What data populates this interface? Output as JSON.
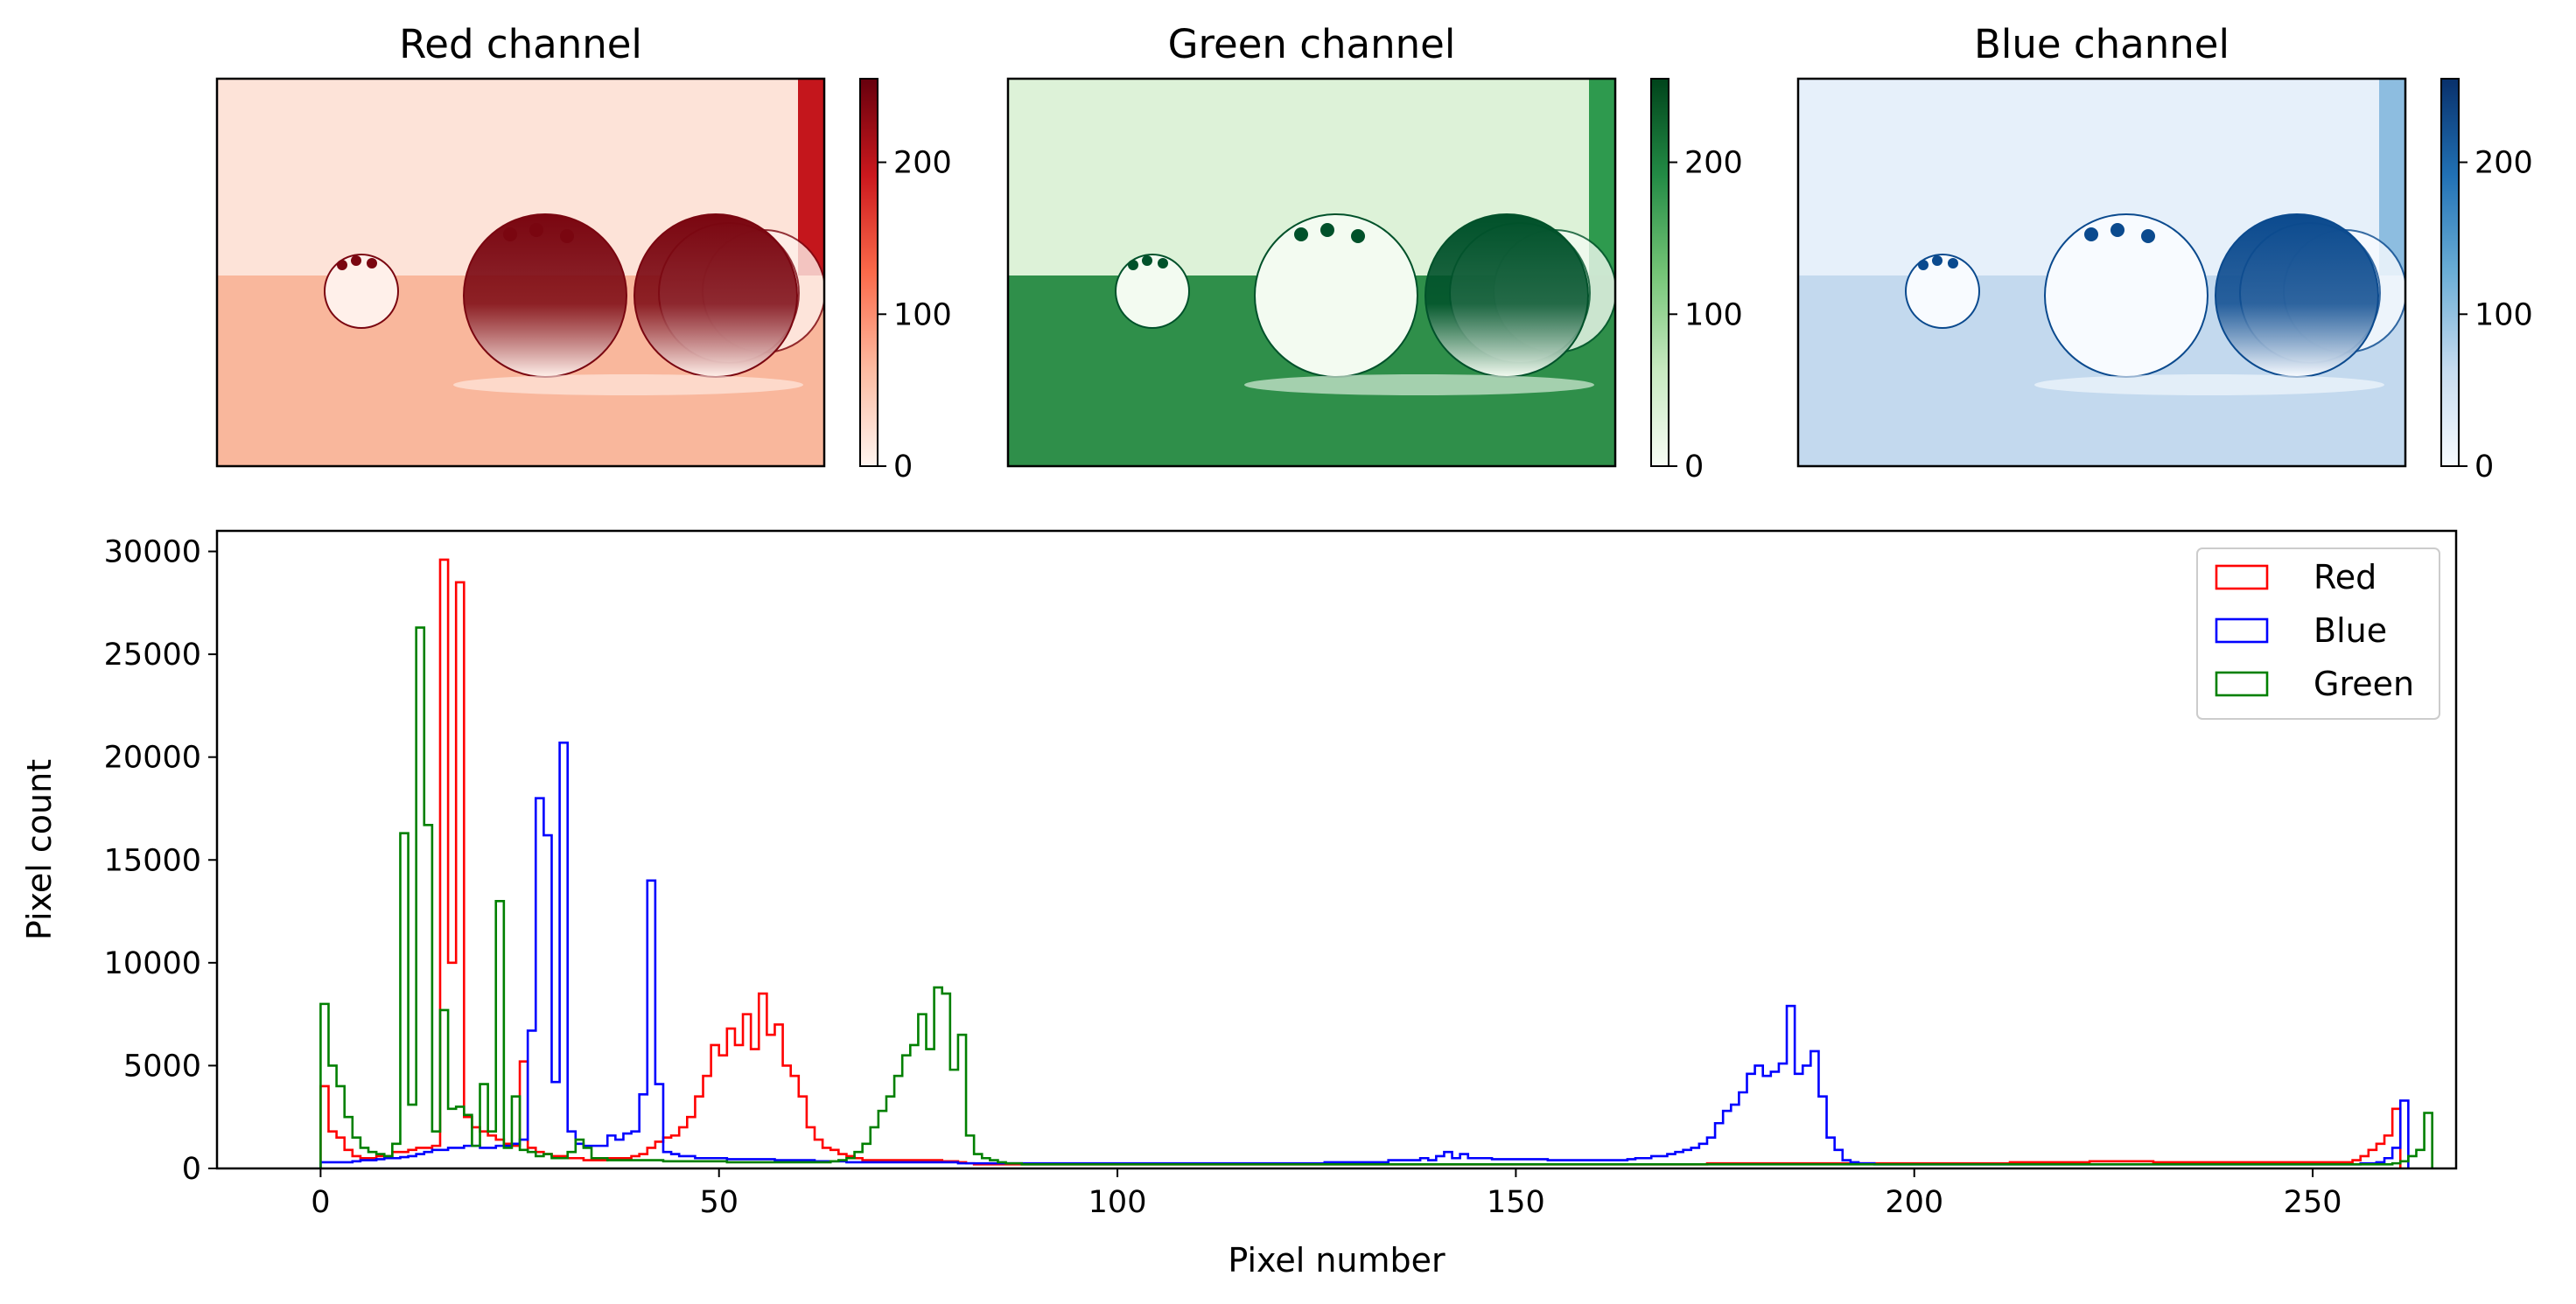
{
  "chart_data": [
    {
      "type": "heatmap",
      "title": "Red channel",
      "colormap": "Reds",
      "colormap_colors": [
        "#fff5f0",
        "#fcbba1",
        "#fb6a4a",
        "#cb181d",
        "#67000d"
      ],
      "colorbar_range": [
        0,
        255
      ],
      "colorbar_ticks": [
        "0",
        "100",
        "200"
      ],
      "image_description_tones": {
        "background": "#fde3d8",
        "right_edge": "#c4161c",
        "floor": "#f9b79c",
        "sphere_dark": "#7a0610",
        "sphere_light": "#fff0ea"
      }
    },
    {
      "type": "heatmap",
      "title": "Green channel",
      "colormap": "Greens",
      "colormap_colors": [
        "#f7fcf5",
        "#c7e9c0",
        "#74c476",
        "#238b45",
        "#00441b"
      ],
      "colorbar_range": [
        0,
        255
      ],
      "colorbar_ticks": [
        "0",
        "100",
        "200"
      ],
      "image_description_tones": {
        "background": "#ddf2d8",
        "right_edge": "#2e9a4e",
        "floor": "#2f8f4a",
        "sphere_dark": "#00512a",
        "sphere_light": "#f3fbf1"
      }
    },
    {
      "type": "heatmap",
      "title": "Blue channel",
      "colormap": "Blues",
      "colormap_colors": [
        "#f7fbff",
        "#c6dbef",
        "#6baed6",
        "#2171b5",
        "#08306b"
      ],
      "colorbar_range": [
        0,
        255
      ],
      "colorbar_ticks": [
        "0",
        "100",
        "200"
      ],
      "image_description_tones": {
        "background": "#e6f0fa",
        "right_edge": "#8dbde0",
        "floor": "#c3d9ee",
        "sphere_dark": "#0b4a8e",
        "sphere_light": "#f8fbff"
      }
    },
    {
      "type": "histogram",
      "xlabel": "Pixel number",
      "ylabel": "Pixel count",
      "xlim": [
        -13,
        268
      ],
      "ylim": [
        0,
        31000
      ],
      "xticks": [
        0,
        50,
        100,
        150,
        200,
        250
      ],
      "yticks": [
        0,
        5000,
        10000,
        15000,
        20000,
        25000,
        30000
      ],
      "legend_position": "top-right",
      "bins": "one bin per pixel value 0-255",
      "series": [
        {
          "name": "Red",
          "color": "#ff0000",
          "values": [
            4000,
            1800,
            1500,
            900,
            600,
            500,
            500,
            600,
            600,
            800,
            800,
            900,
            1000,
            1000,
            1100,
            29600,
            10000,
            28500,
            2500,
            2000,
            1800,
            1600,
            1400,
            1200,
            1100,
            5200,
            1000,
            800,
            700,
            600,
            600,
            500,
            500,
            400,
            400,
            400,
            500,
            500,
            500,
            600,
            700,
            1000,
            1300,
            1500,
            1600,
            2000,
            2500,
            3500,
            4500,
            6000,
            5500,
            6800,
            6000,
            7500,
            5800,
            8500,
            6500,
            7000,
            5000,
            4500,
            3500,
            2000,
            1400,
            1000,
            900,
            700,
            600,
            500,
            400,
            400,
            400,
            400,
            400,
            400,
            400,
            400,
            400,
            400,
            350,
            350,
            300,
            250,
            200,
            200,
            200,
            200,
            200,
            200,
            200,
            200,
            200,
            200,
            200,
            200,
            200,
            200,
            200,
            200,
            200,
            200,
            200,
            200,
            200,
            200,
            200,
            200,
            200,
            200,
            200,
            200,
            200,
            200,
            200,
            200,
            200,
            200,
            200,
            200,
            200,
            200,
            200,
            200,
            200,
            200,
            200,
            200,
            200,
            200,
            200,
            200,
            200,
            200,
            200,
            200,
            200,
            200,
            200,
            200,
            200,
            200,
            200,
            200,
            200,
            200,
            200,
            200,
            200,
            200,
            200,
            200,
            200,
            200,
            200,
            200,
            200,
            200,
            200,
            200,
            200,
            200,
            200,
            200,
            200,
            200,
            200,
            200,
            200,
            200,
            200,
            200,
            200,
            200,
            200,
            200,
            250,
            250,
            250,
            250,
            250,
            250,
            250,
            250,
            250,
            250,
            250,
            250,
            250,
            250,
            250,
            250,
            250,
            250,
            250,
            250,
            250,
            250,
            250,
            250,
            250,
            250,
            250,
            250,
            250,
            250,
            250,
            250,
            250,
            250,
            250,
            250,
            250,
            250,
            300,
            300,
            300,
            300,
            300,
            300,
            300,
            300,
            300,
            300,
            350,
            350,
            350,
            350,
            350,
            350,
            350,
            350,
            300,
            300,
            300,
            300,
            300,
            300,
            300,
            300,
            300,
            300,
            300,
            300,
            300,
            300,
            300,
            300,
            300,
            300,
            300,
            300,
            300,
            300,
            300,
            300,
            300,
            400,
            600,
            900,
            1200,
            1600,
            2900
          ]
        },
        {
          "name": "Blue",
          "color": "#0000ff",
          "values": [
            300,
            300,
            300,
            300,
            350,
            400,
            400,
            450,
            500,
            500,
            550,
            600,
            700,
            800,
            900,
            900,
            1000,
            1000,
            1100,
            1100,
            1000,
            1000,
            1100,
            1100,
            1200,
            1400,
            6700,
            18000,
            16200,
            4200,
            20700,
            1800,
            1200,
            1100,
            1100,
            1100,
            1600,
            1400,
            1700,
            1800,
            3600,
            14000,
            4100,
            800,
            700,
            600,
            600,
            500,
            500,
            500,
            500,
            450,
            450,
            450,
            450,
            450,
            450,
            400,
            400,
            400,
            400,
            400,
            350,
            350,
            350,
            350,
            300,
            300,
            300,
            300,
            300,
            300,
            300,
            300,
            300,
            300,
            300,
            300,
            300,
            300,
            250,
            250,
            250,
            250,
            250,
            250,
            250,
            250,
            250,
            250,
            250,
            250,
            250,
            250,
            250,
            250,
            250,
            250,
            250,
            250,
            250,
            250,
            250,
            250,
            250,
            250,
            250,
            250,
            250,
            250,
            250,
            250,
            250,
            250,
            250,
            250,
            250,
            250,
            250,
            250,
            250,
            250,
            250,
            250,
            250,
            250,
            300,
            300,
            300,
            300,
            300,
            300,
            300,
            300,
            400,
            400,
            400,
            400,
            500,
            400,
            600,
            800,
            500,
            700,
            500,
            500,
            500,
            450,
            450,
            450,
            450,
            450,
            450,
            450,
            400,
            400,
            400,
            400,
            400,
            400,
            400,
            400,
            400,
            400,
            450,
            500,
            500,
            600,
            600,
            700,
            800,
            900,
            1000,
            1200,
            1500,
            2200,
            2800,
            3100,
            3700,
            4600,
            5000,
            4500,
            4700,
            5100,
            7900,
            4600,
            5000,
            5700,
            3500,
            1500,
            900,
            400,
            300,
            250,
            250,
            200,
            200,
            200,
            200,
            200,
            200,
            200,
            200,
            200,
            200,
            200,
            200,
            200,
            200,
            200,
            200,
            200,
            200,
            200,
            200,
            200,
            200,
            200,
            200,
            200,
            200,
            200,
            200,
            200,
            200,
            200,
            200,
            200,
            200,
            200,
            200,
            200,
            200,
            200,
            200,
            200,
            200,
            200,
            200,
            200,
            200,
            200,
            200,
            200,
            200,
            200,
            200,
            200,
            200,
            200,
            200,
            200,
            200,
            200,
            200,
            200,
            250,
            250,
            300,
            500,
            1000,
            3300
          ]
        },
        {
          "name": "Green",
          "color": "#008000",
          "values": [
            8000,
            5000,
            4000,
            2500,
            1500,
            1000,
            800,
            700,
            600,
            1200,
            16300,
            3100,
            26300,
            16700,
            1800,
            7700,
            2900,
            3000,
            2600,
            1100,
            4100,
            1800,
            13000,
            1000,
            3500,
            900,
            800,
            600,
            700,
            500,
            500,
            800,
            1400,
            1000,
            500,
            500,
            400,
            400,
            400,
            400,
            400,
            400,
            400,
            350,
            350,
            350,
            350,
            350,
            350,
            350,
            350,
            300,
            300,
            300,
            300,
            300,
            300,
            300,
            300,
            300,
            300,
            300,
            300,
            300,
            350,
            400,
            500,
            800,
            1200,
            2000,
            2800,
            3500,
            4500,
            5500,
            6000,
            7500,
            5800,
            8800,
            8500,
            4800,
            6500,
            1600,
            700,
            500,
            400,
            300,
            250,
            250,
            200,
            200,
            200,
            200,
            200,
            200,
            200,
            200,
            200,
            200,
            200,
            200,
            200,
            200,
            200,
            200,
            200,
            200,
            200,
            200,
            200,
            200,
            200,
            200,
            200,
            200,
            200,
            200,
            200,
            200,
            200,
            200,
            200,
            200,
            200,
            200,
            200,
            200,
            200,
            200,
            200,
            200,
            200,
            200,
            200,
            200,
            200,
            200,
            200,
            200,
            200,
            200,
            200,
            200,
            200,
            200,
            200,
            200,
            200,
            200,
            200,
            200,
            200,
            200,
            200,
            200,
            200,
            200,
            200,
            200,
            200,
            200,
            200,
            200,
            200,
            200,
            200,
            200,
            200,
            200,
            200,
            200,
            200,
            200,
            200,
            200,
            200,
            200,
            200,
            200,
            200,
            200,
            200,
            200,
            200,
            200,
            200,
            200,
            200,
            200,
            200,
            200,
            200,
            200,
            200,
            200,
            200,
            200,
            200,
            200,
            200,
            200,
            200,
            200,
            200,
            200,
            200,
            200,
            200,
            200,
            200,
            200,
            200,
            200,
            200,
            200,
            200,
            200,
            200,
            200,
            200,
            200,
            200,
            200,
            200,
            200,
            200,
            200,
            200,
            200,
            200,
            200,
            200,
            200,
            200,
            200,
            200,
            200,
            200,
            200,
            200,
            200,
            200,
            200,
            200,
            200,
            200,
            200,
            200,
            200,
            200,
            200,
            200,
            200,
            200,
            200,
            200,
            200,
            200,
            200,
            200,
            200,
            250,
            350,
            600,
            900,
            2700
          ]
        }
      ]
    }
  ]
}
